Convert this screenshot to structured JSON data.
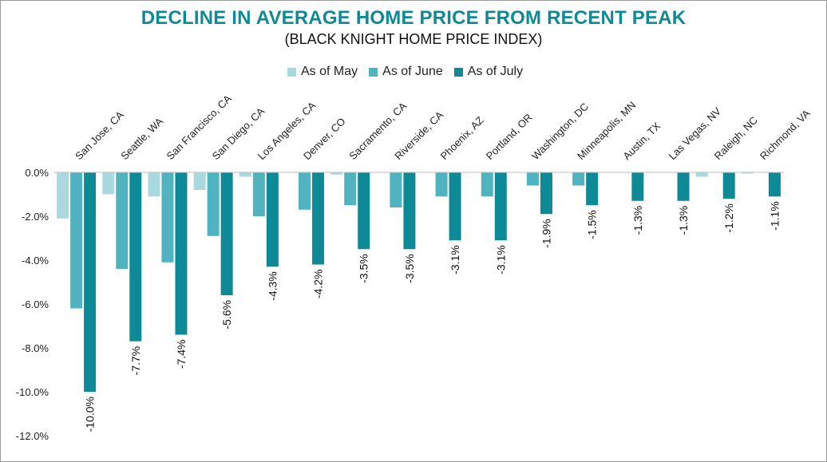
{
  "chart_data": {
    "type": "bar",
    "title": "DECLINE IN AVERAGE HOME PRICE FROM RECENT PEAK",
    "subtitle": "(BLACK KNIGHT HOME PRICE INDEX)",
    "categories": [
      "San Jose, CA",
      "Seattle, WA",
      "San Francisco, CA",
      "San Diego, CA",
      "Los Angeles, CA",
      "Denver, CO",
      "Sacramento, CA",
      "Riverside, CA",
      "Phoenix, AZ",
      "Portland, OR",
      "Washington, DC",
      "Minneapolis, MN",
      "Austin, TX",
      "Las Vegas, NV",
      "Raleigh, NC",
      "Richmond, VA"
    ],
    "series": [
      {
        "name": "As of May",
        "color": "#a9d8df",
        "values": [
          -2.1,
          -1.0,
          -1.1,
          -0.8,
          -0.2,
          0.0,
          -0.1,
          0.0,
          0.0,
          0.0,
          0.0,
          0.0,
          0.0,
          0.0,
          -0.2,
          -0.05
        ]
      },
      {
        "name": "As of June",
        "color": "#4fb3c0",
        "values": [
          -6.2,
          -4.4,
          -4.1,
          -2.9,
          -2.0,
          -1.7,
          -1.5,
          -1.6,
          -1.1,
          -1.1,
          -0.6,
          -0.6,
          0.0,
          0.0,
          0.0,
          0.0
        ]
      },
      {
        "name": "As of July",
        "color": "#0e8a96",
        "values": [
          -10.0,
          -7.7,
          -7.4,
          -5.6,
          -4.3,
          -4.2,
          -3.5,
          -3.5,
          -3.1,
          -3.1,
          -1.9,
          -1.5,
          -1.3,
          -1.3,
          -1.2,
          -1.1
        ]
      }
    ],
    "data_labels_series": "As of July",
    "data_labels": [
      "-10.0%",
      "-7.7%",
      "-7.4%",
      "-5.6%",
      "-4.3%",
      "-4.2%",
      "-3.5%",
      "-3.5%",
      "-3.1%",
      "-3.1%",
      "-1.9%",
      "-1.5%",
      "-1.3%",
      "-1.3%",
      "-1.2%",
      "-1.1%"
    ],
    "ylim": [
      -12,
      0
    ],
    "y_ticks": [
      0,
      -2,
      -4,
      -6,
      -8,
      -10,
      -12
    ],
    "y_tick_labels": [
      "0.0%",
      "-2.0%",
      "-4.0%",
      "-6.0%",
      "-8.0%",
      "-10.0%",
      "-12.0%"
    ],
    "legend_position": "top-center",
    "category_labels_position": "top-rotated",
    "grid": false
  }
}
